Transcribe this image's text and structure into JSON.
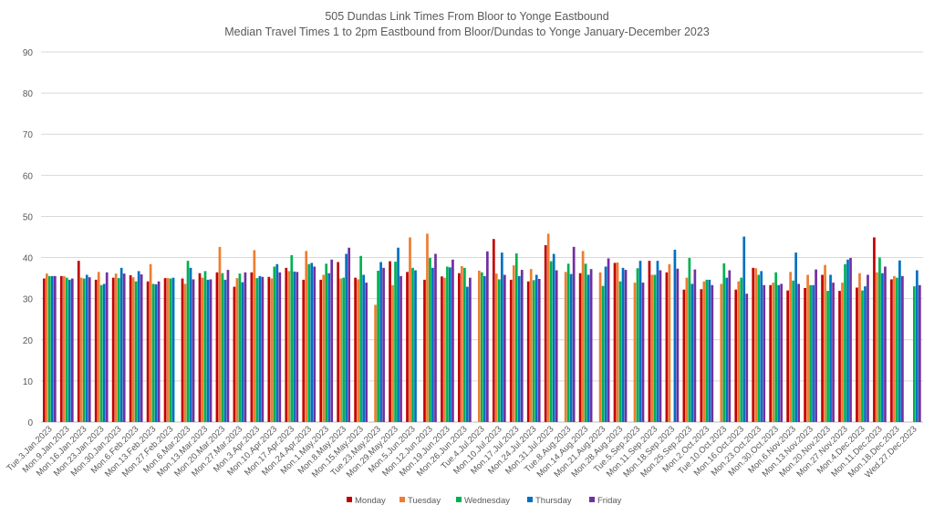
{
  "chart_data": {
    "type": "bar",
    "title": "505 Dundas Link Times From Bloor to Yonge Eastbound",
    "subtitle": "Median Travel Times 1 to 2pm Eastbound from Bloor/Dundas to Yonge January-December 2023",
    "xlabel": "",
    "ylabel": "",
    "ylim": [
      0,
      90
    ],
    "yticks": [
      0,
      10,
      20,
      30,
      40,
      50,
      60,
      70,
      80,
      90
    ],
    "grid": true,
    "legend_position": "bottom",
    "categories": [
      "Tue.3.Jan.2023",
      "Mon.9.Jan.2023",
      "Mon.16.Jan.2023",
      "Mon.23.Jan.2023",
      "Mon.30.Jan.2023",
      "Mon.6.Feb.2023",
      "Mon.13.Feb.2023",
      "Mon.27.Feb.2023",
      "Mon.6.Mar.2023",
      "Mon.13.Mar.2023",
      "Mon.20.Mar.2023",
      "Mon.27.Mar.2023",
      "Mon.3.Apr.2023",
      "Mon.10.Apr.2023",
      "Mon.17.Apr.2023",
      "Mon.24.Apr.2023",
      "Mon.1.May.2023",
      "Mon.8.May.2023",
      "Mon.15.May.2023",
      "Tue.23.May.2023",
      "Mon.29.May.2023",
      "Mon.5.Jun.2023",
      "Mon.12.Jun.2023",
      "Mon.19.Jun.2023",
      "Mon.26.Jun.2023",
      "Tue.4.Jul.2023",
      "Mon.10.Jul.2023",
      "Mon.17.Jul.2023",
      "Mon.24.Jul.2023",
      "Mon.31.Jul.2023",
      "Tue.8.Aug.2023",
      "Mon.14.Aug.2023",
      "Mon.21.Aug.2023",
      "Mon.28.Aug.2023",
      "Tue.5.Sep.2023",
      "Mon.11.Sep.2023",
      "Mon.18.Sep.2023",
      "Mon.25.Sep.2023",
      "Mon.2.Oct.2023",
      "Tue.10.Oct.2023",
      "Mon.16.Oct.2023",
      "Mon.23.Oct.2023",
      "Mon.30.Oct.2023",
      "Mon.6.Nov.2023",
      "Mon.13.Nov.2023",
      "Mon.20.Nov.2023",
      "Mon.27.Nov.2023",
      "Mon.4.Dec.2023",
      "Mon.11.Dec.2023",
      "Mon.18.Dec.2023",
      "Wed.27.Dec.2023"
    ],
    "series": [
      {
        "name": "Monday",
        "color": "#C00000",
        "values": [
          34.9,
          35.5,
          39.2,
          34.6,
          35.1,
          35.7,
          34.2,
          35.0,
          34.9,
          36.2,
          36.4,
          32.9,
          36.4,
          35.3,
          37.5,
          34.6,
          34.6,
          38.9,
          35.1,
          null,
          39.1,
          36.5,
          34.6,
          35.4,
          36.2,
          null,
          44.5,
          34.6,
          34.2,
          43.0,
          null,
          36.2,
          null,
          38.7,
          null,
          39.2,
          36.4,
          32.2,
          32.3,
          null,
          32.2,
          37.5,
          33.3,
          32.0,
          32.6,
          35.8,
          31.9,
          32.7,
          44.9,
          34.7,
          null
        ]
      },
      {
        "name": "Tuesday",
        "color": "#ED7D31",
        "values": [
          36.1,
          35.5,
          35.1,
          36.5,
          36.1,
          35.2,
          38.4,
          35.0,
          33.6,
          35.1,
          42.6,
          35.0,
          41.8,
          34.9,
          36.7,
          41.6,
          35.8,
          34.9,
          34.7,
          28.5,
          33.3,
          44.9,
          45.8,
          35.1,
          37.9,
          36.8,
          36.1,
          38.1,
          37.2,
          45.8,
          36.5,
          41.6,
          36.4,
          38.8,
          33.9,
          35.8,
          38.4,
          35.1,
          34.2,
          33.6,
          34.2,
          37.4,
          33.9,
          36.5,
          35.8,
          38.2,
          33.9,
          36.2,
          36.4,
          35.5,
          null
        ]
      },
      {
        "name": "Wednesday",
        "color": "#00B050",
        "values": [
          35.5,
          35.1,
          34.9,
          33.3,
          35.0,
          34.2,
          33.6,
          34.9,
          39.2,
          36.7,
          36.2,
          36.1,
          35.0,
          37.8,
          40.6,
          38.4,
          38.5,
          35.1,
          40.4,
          36.8,
          39.0,
          37.5,
          39.9,
          37.8,
          37.5,
          36.4,
          34.7,
          41.0,
          34.5,
          39.1,
          38.5,
          38.5,
          33.1,
          34.2,
          37.4,
          35.8,
          null,
          39.9,
          34.6,
          38.6,
          35.1,
          35.8,
          36.4,
          34.4,
          33.3,
          31.9,
          38.4,
          32.0,
          40.0,
          35.1,
          33.0
        ]
      },
      {
        "name": "Thursday",
        "color": "#0070C0",
        "values": [
          35.5,
          34.6,
          35.8,
          33.6,
          37.5,
          36.7,
          33.5,
          35.1,
          37.5,
          34.6,
          34.6,
          34.0,
          35.5,
          38.4,
          36.6,
          38.7,
          36.2,
          40.9,
          35.8,
          38.9,
          42.4,
          36.9,
          37.5,
          37.6,
          32.9,
          35.5,
          41.2,
          35.5,
          35.8,
          40.9,
          36.0,
          35.8,
          37.8,
          37.5,
          39.2,
          39.2,
          41.9,
          33.6,
          34.6,
          35.1,
          45.1,
          36.7,
          33.3,
          41.2,
          33.3,
          35.8,
          39.5,
          33.0,
          36.2,
          39.3,
          36.9
        ]
      },
      {
        "name": "Friday",
        "color": "#7030A0",
        "values": [
          35.5,
          34.9,
          35.2,
          36.4,
          36.1,
          35.9,
          34.2,
          null,
          34.7,
          34.7,
          37.0,
          36.4,
          35.3,
          36.4,
          36.5,
          37.8,
          39.5,
          42.4,
          33.9,
          37.5,
          35.5,
          null,
          40.9,
          39.5,
          35.1,
          41.5,
          35.8,
          37.0,
          34.8,
          36.9,
          42.6,
          37.2,
          39.8,
          37.0,
          33.9,
          36.9,
          37.3,
          37.1,
          33.3,
          36.9,
          31.2,
          33.3,
          33.6,
          33.6,
          37.1,
          33.9,
          39.9,
          35.8,
          37.8,
          35.5,
          33.3
        ]
      }
    ]
  }
}
